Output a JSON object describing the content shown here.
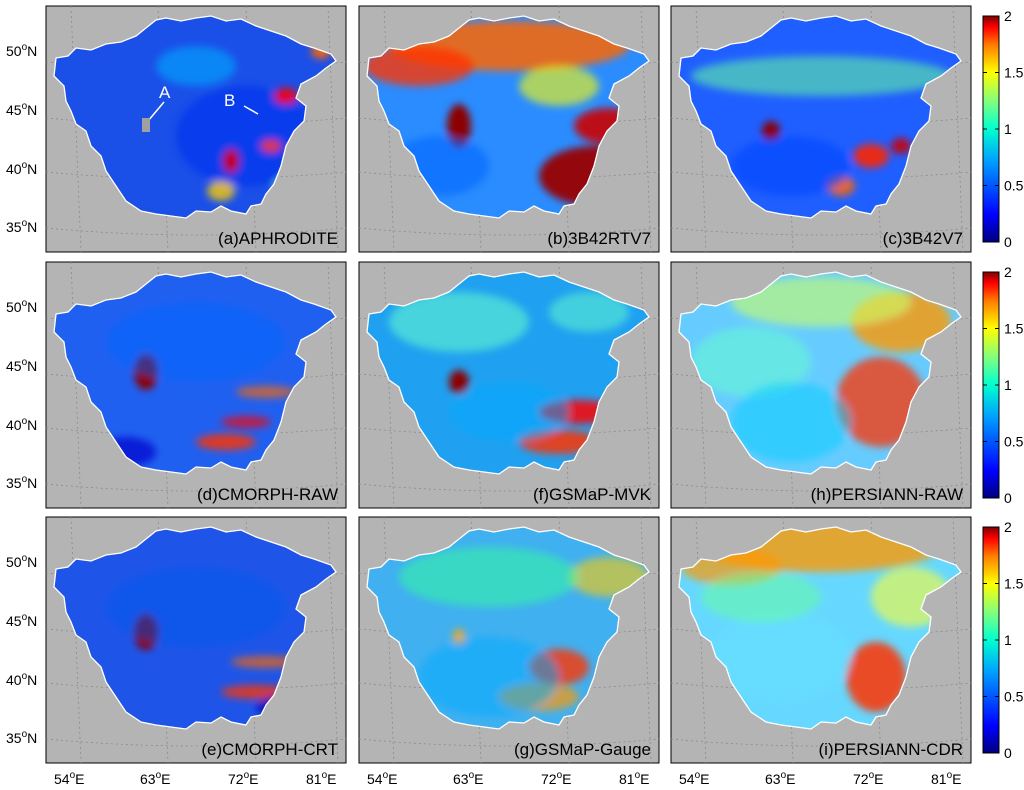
{
  "figure": {
    "panels": [
      {
        "id": "a",
        "label": "(a)APHRODITE"
      },
      {
        "id": "b",
        "label": "(b)3B42RTV7"
      },
      {
        "id": "c",
        "label": "(c)3B42V7"
      },
      {
        "id": "d",
        "label": "(d)CMORPH-RAW"
      },
      {
        "id": "f",
        "label": "(f)GSMaP-MVK"
      },
      {
        "id": "h",
        "label": "(h)PERSIANN-RAW"
      },
      {
        "id": "e",
        "label": "(e)CMORPH-CRT"
      },
      {
        "id": "g",
        "label": "(g)GSMaP-Gauge"
      },
      {
        "id": "i",
        "label": "(i)PERSIANN-CDR"
      }
    ],
    "annotations": {
      "point_a": "A",
      "point_b": "B"
    },
    "lat_ticks": [
      {
        "deg": "50",
        "hemi": "N"
      },
      {
        "deg": "45",
        "hemi": "N"
      },
      {
        "deg": "40",
        "hemi": "N"
      },
      {
        "deg": "35",
        "hemi": "N"
      }
    ],
    "lon_ticks": [
      {
        "deg": "54",
        "hemi": "E"
      },
      {
        "deg": "63",
        "hemi": "E"
      },
      {
        "deg": "72",
        "hemi": "E"
      },
      {
        "deg": "81",
        "hemi": "E"
      }
    ],
    "degree_symbol": "o",
    "colorbar": {
      "ticks": [
        "2",
        "1.5",
        "1",
        "0.5",
        "0"
      ],
      "colors": [
        "#00007f",
        "#0000ff",
        "#007fff",
        "#00ffff",
        "#7fff7f",
        "#ffff00",
        "#ff7f00",
        "#ff0000",
        "#7f0000"
      ]
    },
    "colors": {
      "background": "#b4b4b4",
      "region": "#1f6fe0",
      "border": "#ffffff"
    }
  }
}
